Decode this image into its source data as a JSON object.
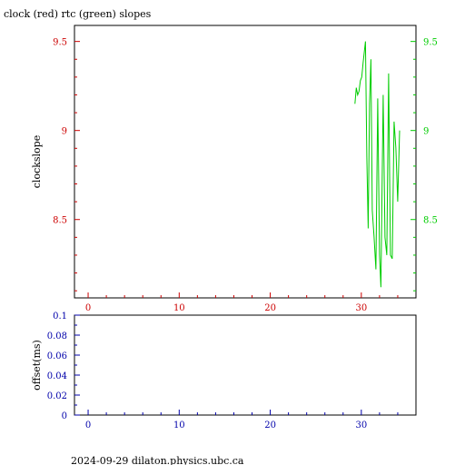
{
  "title": "clock (red) rtc (green) slopes",
  "footer": "2024-09-29  dilaton.physics.ubc.ca",
  "colors": {
    "red": "#cc0000",
    "green": "#00cc00",
    "blue": "#0000aa",
    "frame": "#000000"
  },
  "chart_data": [
    {
      "type": "line",
      "title": "clock (red) rtc (green) slopes",
      "ylabel": "clockslope",
      "xlim": [
        -1.5,
        36
      ],
      "ylim": [
        8.06,
        9.59
      ],
      "x_ticks": [
        {
          "value": 0,
          "label": "0"
        },
        {
          "value": 10,
          "label": "10"
        },
        {
          "value": 20,
          "label": "20"
        },
        {
          "value": 30,
          "label": "30"
        }
      ],
      "y_ticks_left": [
        {
          "value": 9.5,
          "label": "9.5"
        },
        {
          "value": 9,
          "label": "9"
        },
        {
          "value": 8.5,
          "label": "8.5"
        }
      ],
      "y_ticks_right": [
        {
          "value": 9.5,
          "label": "9.5"
        },
        {
          "value": 9,
          "label": "9"
        },
        {
          "value": 8.5,
          "label": "8.5"
        }
      ],
      "series": [
        {
          "color": "green",
          "x": [
            29.3,
            29.45,
            29.6,
            29.75,
            29.9,
            30.05,
            30.2,
            30.35,
            30.45,
            30.6,
            30.75,
            30.9,
            31.05,
            31.2,
            31.4,
            31.6,
            31.8,
            32.0,
            32.15,
            32.4,
            32.6,
            32.8,
            33.0,
            33.2,
            33.4,
            33.6,
            33.8,
            34.0,
            34.2
          ],
          "y": [
            9.15,
            9.24,
            9.2,
            9.22,
            9.28,
            9.3,
            9.38,
            9.45,
            9.5,
            8.85,
            8.45,
            9.15,
            9.4,
            8.55,
            8.4,
            8.22,
            9.18,
            8.3,
            8.12,
            9.2,
            8.4,
            8.3,
            9.32,
            8.3,
            8.28,
            9.05,
            8.9,
            8.6,
            9.0
          ]
        }
      ]
    },
    {
      "type": "line",
      "ylabel": "offset(ms)",
      "xlim": [
        -1.5,
        36
      ],
      "ylim": [
        0,
        0.1
      ],
      "x_ticks": [
        {
          "value": 0,
          "label": "0"
        },
        {
          "value": 10,
          "label": "10"
        },
        {
          "value": 20,
          "label": "20"
        },
        {
          "value": 30,
          "label": "30"
        }
      ],
      "y_ticks": [
        {
          "value": 0.1,
          "label": "0.1"
        },
        {
          "value": 0.08,
          "label": "0.08"
        },
        {
          "value": 0.06,
          "label": "0.06"
        },
        {
          "value": 0.04,
          "label": "0.04"
        },
        {
          "value": 0.02,
          "label": "0.02"
        },
        {
          "value": 0,
          "label": "0"
        }
      ],
      "series": []
    }
  ]
}
